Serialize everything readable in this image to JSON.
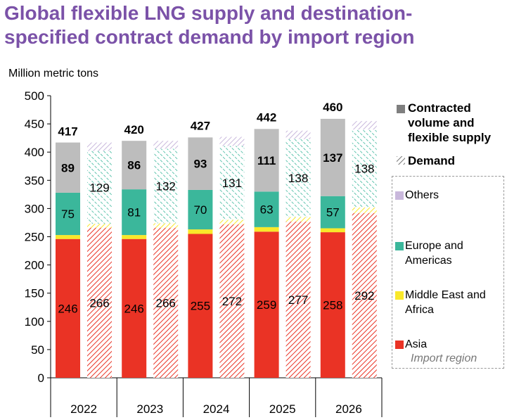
{
  "title": "Global flexible LNG supply and destination-specified contract demand by import region",
  "unit_label": "Million metric tons",
  "legend": {
    "contracted": "Contracted volume and flexible supply",
    "demand": "Demand",
    "others": "Others",
    "europe": "Europe and Americas",
    "mideast": "Middle East and Africa",
    "asia": "Asia",
    "note": "Import region"
  },
  "colors": {
    "title": "#7b52a8",
    "asia": "#ea3325",
    "mideast": "#f9e82a",
    "europe": "#3bb79b",
    "others": "#c9b8dc",
    "contracted": "#bdbdbd",
    "contracted_swatch": "#7f7f7f"
  },
  "chart_data": {
    "type": "bar",
    "categories": [
      "2022",
      "2023",
      "2024",
      "2025",
      "2026"
    ],
    "ylim": [
      0,
      500
    ],
    "yticks": [
      0,
      50,
      100,
      150,
      200,
      250,
      300,
      350,
      400,
      450,
      500
    ],
    "ylabel": "Million metric tons",
    "supply": {
      "asia": [
        246,
        246,
        255,
        259,
        258
      ],
      "mideast": [
        7,
        7,
        8,
        8,
        7
      ],
      "europe": [
        75,
        81,
        70,
        63,
        57
      ],
      "contracted_flexible": [
        89,
        86,
        93,
        111,
        137
      ],
      "total": [
        417,
        420,
        427,
        442,
        460
      ]
    },
    "demand": {
      "asia": [
        266,
        266,
        272,
        277,
        292
      ],
      "mideast": [
        7,
        8,
        8,
        8,
        10
      ],
      "europe": [
        129,
        132,
        131,
        138,
        138
      ],
      "others": [
        15,
        14,
        16,
        15,
        15
      ]
    },
    "data_label_stacks": {
      "supply": [
        "asia",
        "europe",
        "contracted_flexible"
      ],
      "demand": [
        "asia",
        "europe"
      ]
    }
  }
}
